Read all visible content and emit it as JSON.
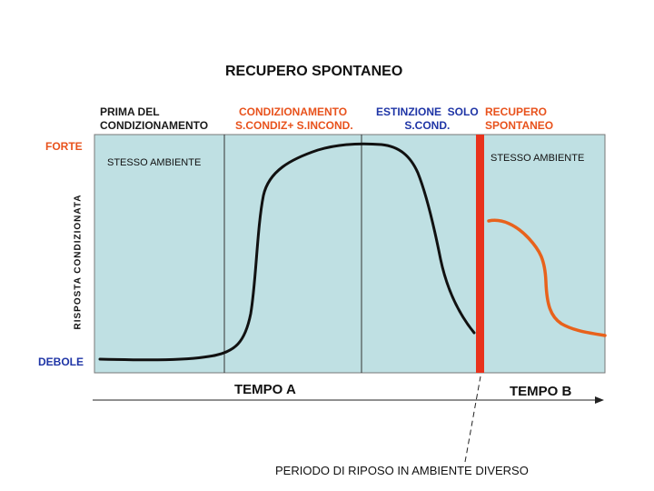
{
  "title": "RECUPERO SPONTANEO",
  "phases": {
    "prima": [
      "PRIMA DEL",
      "CONDIZIONAMENTO"
    ],
    "condizionamento": [
      "CONDIZIONAMENTO",
      "S.CONDIZ+ S.INCOND."
    ],
    "estinzione": [
      "ESTINZIONE  SOLO",
      "S.COND."
    ],
    "recupero": [
      "RECUPERO",
      "SPONTANEO"
    ]
  },
  "y_axis": {
    "label": "RISPOSTA CONDIZIONATA",
    "top": "FORTE",
    "bottom": "DEBOLE"
  },
  "environment_a": "STESSO AMBIENTE",
  "environment_b": "STESSO AMBIENTE",
  "tempo_a": "TEMPO A",
  "tempo_b": "TEMPO B",
  "rest_period": "PERIODO DI RIPOSO IN AMBIENTE DIVERSO",
  "colors": {
    "panel": "#bfe0e3",
    "curve_a": "#111111",
    "curve_b": "#e8621c",
    "separator": "#e8321c",
    "accent_orange": "#e8521c",
    "accent_blue": "#1f35a6"
  }
}
